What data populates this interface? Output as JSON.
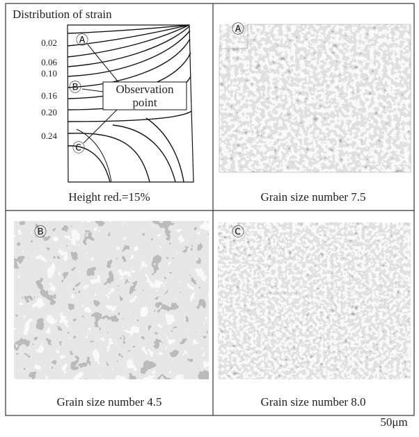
{
  "figure": {
    "strain_panel": {
      "title": "Distribution of strain",
      "strain_labels": [
        "0.02",
        "0.06",
        "0.10",
        "0.16",
        "0.20",
        "0.24"
      ],
      "point_labels": [
        "Ⓐ",
        "Ⓑ",
        "Ⓒ"
      ],
      "callout": [
        "Observation",
        "point"
      ],
      "caption": "Height red.=15%"
    },
    "micrographs": [
      {
        "label": "Ⓐ",
        "caption": "Grain size number 7.5"
      },
      {
        "label": "Ⓑ",
        "caption": "Grain size number 4.5"
      },
      {
        "label": "Ⓒ",
        "caption": "Grain size number 8.0"
      }
    ],
    "scale_bar": "50μm"
  }
}
